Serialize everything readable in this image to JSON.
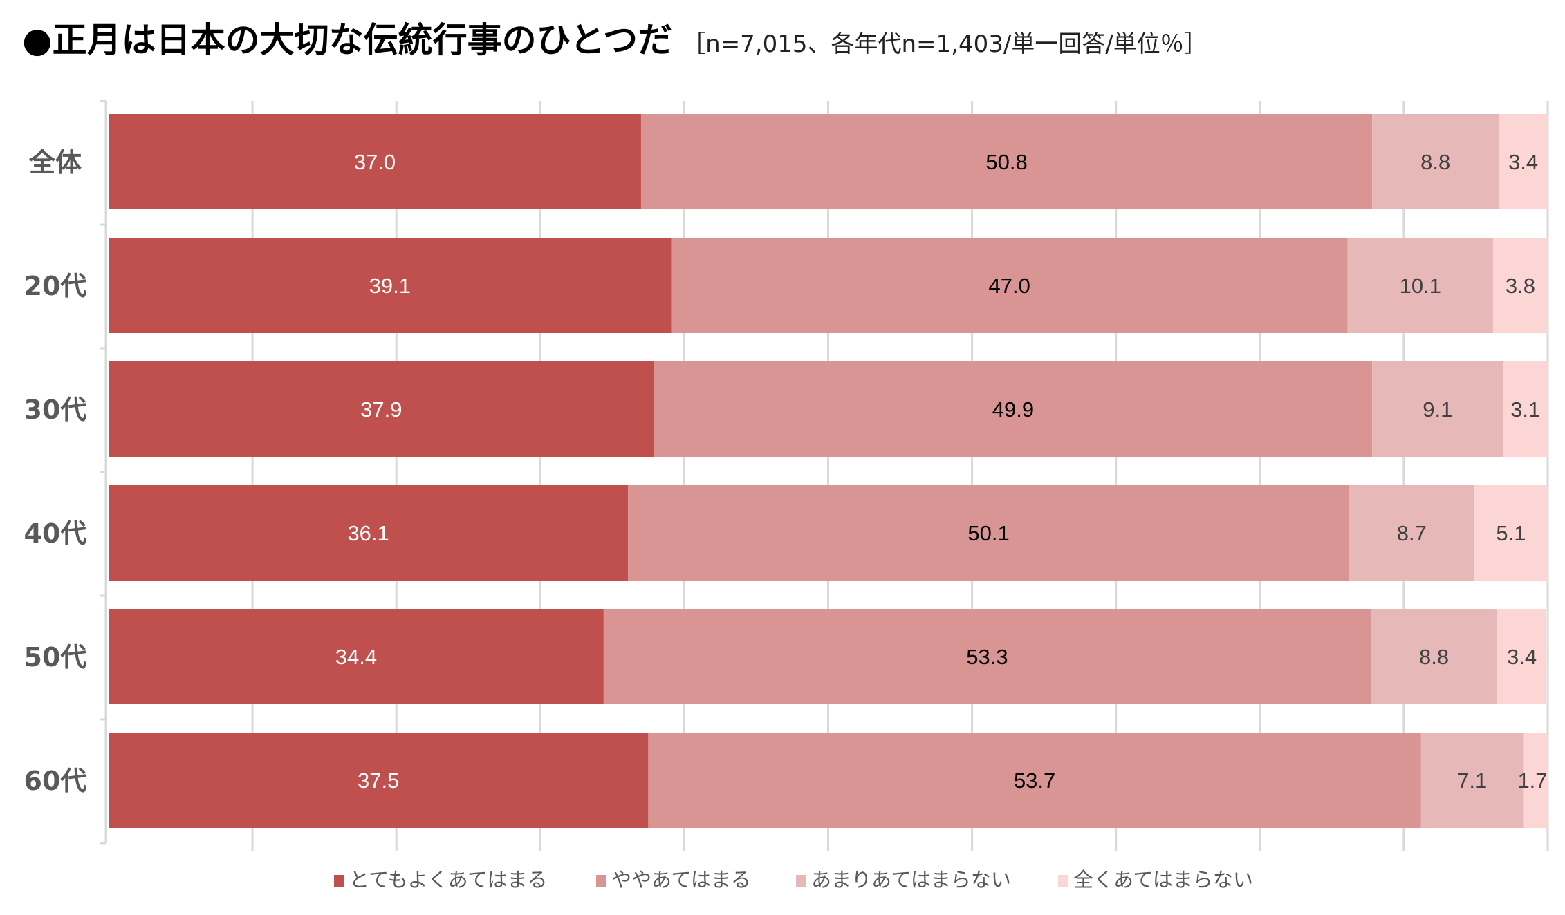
{
  "chart_data": {
    "type": "bar",
    "orientation": "horizontal",
    "stacked": true,
    "title": "●正月は日本の大切な伝統行事のひとつだ",
    "subtitle": "［n=7,015、各年代n=1,403/単一回答/単位％］",
    "categories": [
      "全体",
      "20代",
      "30代",
      "40代",
      "50代",
      "60代"
    ],
    "series": [
      {
        "name": "とてもよくあてはまる",
        "color": "#c0504d",
        "label_color": "#ffffff",
        "values": [
          37.0,
          39.1,
          37.9,
          36.1,
          34.4,
          37.5
        ]
      },
      {
        "name": "ややあてはまる",
        "color": "#d99594",
        "label_color": "#000000",
        "values": [
          50.8,
          47.0,
          49.9,
          50.1,
          53.3,
          53.7
        ]
      },
      {
        "name": "あまりあてはまらない",
        "color": "#e6b8b7",
        "label_color": "#404040",
        "values": [
          8.8,
          10.1,
          9.1,
          8.7,
          8.8,
          7.1
        ]
      },
      {
        "name": "全くあてはまらない",
        "color": "#fcd5d5",
        "label_color": "#404040",
        "values": [
          3.4,
          3.8,
          3.1,
          5.1,
          3.4,
          1.7
        ]
      }
    ],
    "xlim": [
      0,
      100
    ],
    "grid": true,
    "legend": "bottom"
  }
}
